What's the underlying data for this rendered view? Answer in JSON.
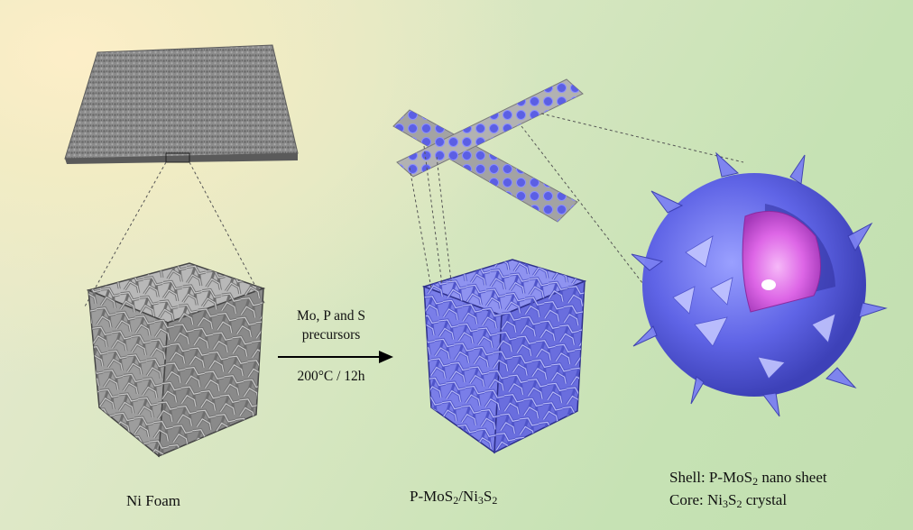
{
  "labels": {
    "ni_foam": "Ni Foam",
    "product": {
      "p1": "P-MoS",
      "s1": "2",
      "p2": "/Ni",
      "s2": "3",
      "p3": "S",
      "s3": "2"
    },
    "process_line1": "Mo, P and S",
    "process_line2": "precursors",
    "process_condition": "200°C / 12h",
    "shell": {
      "p1": "Shell: P-MoS",
      "s1": "2",
      "p2": " nano sheet"
    },
    "core": {
      "p1": "Core: Ni",
      "s1": "3",
      "p2": "S",
      "s2": "2",
      "p3": " crystal"
    }
  },
  "colors": {
    "foam_gray": "#8a8a8a",
    "coated_blue": "#6b6fe0",
    "shell_blue": "#5a5fe6",
    "core_magenta": "#d35ce0"
  }
}
